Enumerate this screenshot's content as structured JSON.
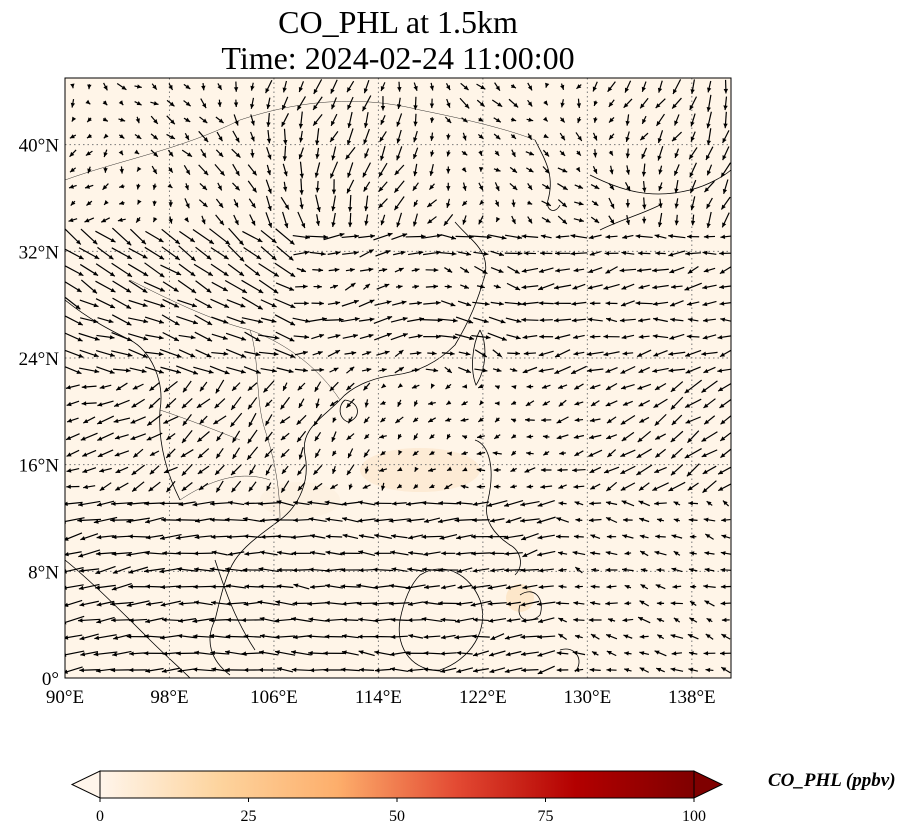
{
  "title": {
    "line1": "CO_PHL at 1.5km",
    "line2": "Time: 2024-02-24 11:00:00"
  },
  "map": {
    "projection": "plate-carree",
    "lon_range": [
      90,
      141
    ],
    "lat_range": [
      0,
      45
    ],
    "gridlines": "dotted",
    "background_color": "#fff5e8",
    "x_ticks": [
      {
        "value": 90,
        "label": "90°E"
      },
      {
        "value": 98,
        "label": "98°E"
      },
      {
        "value": 106,
        "label": "106°E"
      },
      {
        "value": 114,
        "label": "114°E"
      },
      {
        "value": 122,
        "label": "122°E"
      },
      {
        "value": 130,
        "label": "130°E"
      },
      {
        "value": 138,
        "label": "138°E"
      }
    ],
    "y_ticks": [
      {
        "value": 0,
        "label": "0°"
      },
      {
        "value": 8,
        "label": "8°N"
      },
      {
        "value": 16,
        "label": "16°N"
      },
      {
        "value": 24,
        "label": "24°N"
      },
      {
        "value": 32,
        "label": "32°N"
      },
      {
        "value": 40,
        "label": "40°N"
      }
    ],
    "wind_vectors": "quiver arrows"
  },
  "colorbar": {
    "label": "CO_PHL (ppbv)",
    "min": 0,
    "max": 100,
    "extend": "both",
    "colormap": [
      "#fff5eb",
      "#fdd49e",
      "#fdae6b",
      "#e34a33",
      "#b30000",
      "#7f0000"
    ],
    "ticks": [
      {
        "value": 0,
        "label": "0"
      },
      {
        "value": 25,
        "label": "25"
      },
      {
        "value": 50,
        "label": "50"
      },
      {
        "value": 75,
        "label": "75"
      },
      {
        "value": 100,
        "label": "100"
      }
    ]
  }
}
